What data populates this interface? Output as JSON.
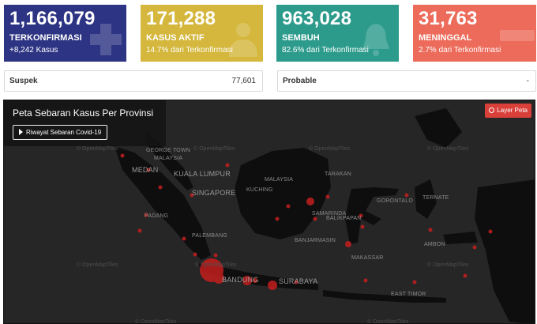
{
  "cards": [
    {
      "number": "1,166,079",
      "label": "TERKONFIRMASI",
      "sub": "+8,242 Kasus",
      "icon": "plus-icon",
      "color": "#2d3483"
    },
    {
      "number": "171,288",
      "label": "KASUS AKTIF",
      "sub": "14.7% dari Terkonfirmasi",
      "icon": "patient-icon",
      "color": "#d4b73c"
    },
    {
      "number": "963,028",
      "label": "SEMBUH",
      "sub": "82.6% dari Terkonfirmasi",
      "icon": "bell-icon",
      "color": "#2d9b8c"
    },
    {
      "number": "31,763",
      "label": "MENINGGAL",
      "sub": "2.7% dari Terkonfirmasi",
      "icon": "minus-icon",
      "color": "#ec6b5a"
    }
  ],
  "suspek": {
    "label": "Suspek",
    "value": "77,601"
  },
  "probable": {
    "label": "Probable",
    "value": "-"
  },
  "map": {
    "title": "Peta Sebaran Kasus Per Provinsi",
    "history_button": "Riwayat Sebaran Covid-19",
    "layer_button": "Layer Peta",
    "watermark": "© OpenMapTiles",
    "cities": [
      "GEORGE TOWN",
      "MALAYSIA",
      "MEDAN",
      "KUALA LUMPUR",
      "SINGAPORE",
      "KUCHING",
      "MALAYSIA",
      "TARAKAN",
      "PADANG",
      "PALEMBANG",
      "BALIKPAPAN",
      "GORONTALO",
      "TERNATE",
      "SAMARINDA",
      "BANJARMASIN",
      "MAKASSAR",
      "AMBON",
      "BANDUNG",
      "SURABAYA",
      "EAST TIMOR"
    ],
    "accent": "#d9403a"
  }
}
